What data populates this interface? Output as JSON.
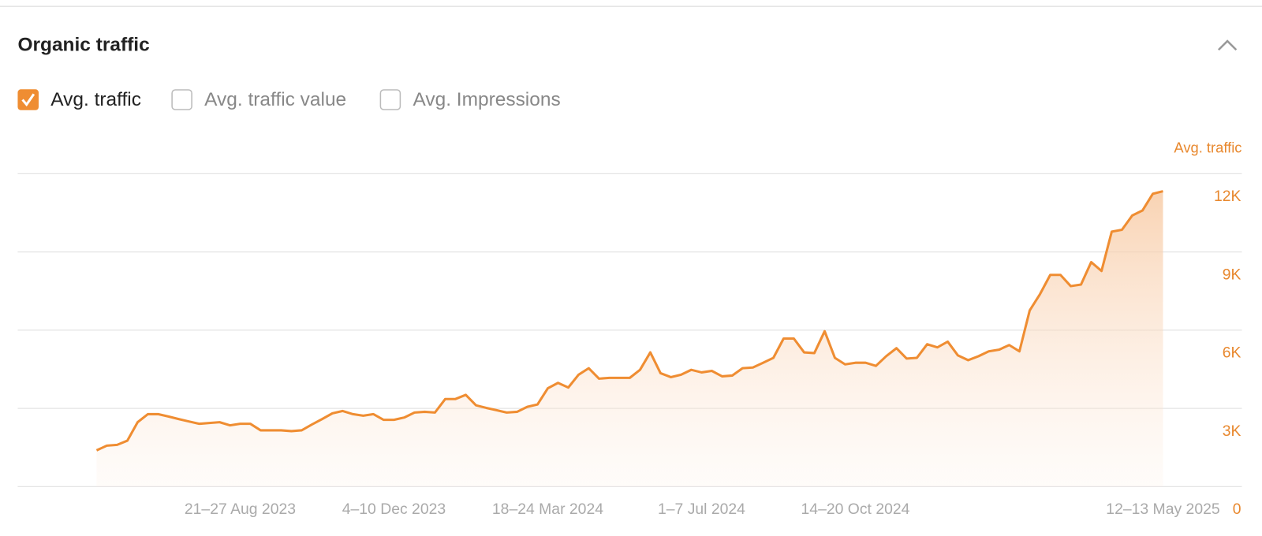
{
  "header": {
    "title": "Organic traffic"
  },
  "toggles": [
    {
      "label": "Avg. traffic",
      "checked": true
    },
    {
      "label": "Avg. traffic value",
      "checked": false
    },
    {
      "label": "Avg. Impressions",
      "checked": false
    }
  ],
  "chart_data": {
    "type": "area",
    "y_axis_label": "Avg. traffic",
    "color": "#ef8d32",
    "grid": true,
    "categories": [
      null,
      null,
      null,
      null,
      null,
      null,
      null,
      null,
      null,
      null,
      null,
      null,
      null,
      null,
      "21–27 Aug 2023",
      null,
      null,
      null,
      null,
      null,
      null,
      null,
      null,
      null,
      null,
      null,
      null,
      null,
      null,
      "4–10 Dec 2023",
      null,
      null,
      null,
      null,
      null,
      null,
      null,
      null,
      null,
      null,
      null,
      null,
      null,
      null,
      "18–24 Mar 2024",
      null,
      null,
      null,
      null,
      null,
      null,
      null,
      null,
      null,
      null,
      null,
      null,
      null,
      null,
      "1–7 Jul 2024",
      null,
      null,
      null,
      null,
      null,
      null,
      null,
      null,
      null,
      null,
      null,
      null,
      null,
      null,
      "14–20 Oct 2024",
      null,
      null,
      null,
      null,
      null,
      null,
      null,
      null,
      null,
      null,
      null,
      null,
      null,
      null,
      null,
      null,
      null,
      null,
      null,
      null,
      null,
      null,
      null,
      null,
      null,
      null,
      null,
      null,
      null,
      "12–13 May 2025"
    ],
    "values": [
      1390,
      1570,
      1600,
      1760,
      2470,
      2780,
      2780,
      2690,
      2590,
      2500,
      2410,
      2440,
      2470,
      2350,
      2410,
      2410,
      2160,
      2160,
      2160,
      2130,
      2160,
      2380,
      2590,
      2810,
      2900,
      2780,
      2720,
      2780,
      2560,
      2560,
      2650,
      2840,
      2870,
      2840,
      3360,
      3360,
      3520,
      3120,
      3020,
      2930,
      2840,
      2870,
      3060,
      3150,
      3770,
      3980,
      3800,
      4290,
      4540,
      4140,
      4170,
      4170,
      4170,
      4480,
      5150,
      4350,
      4200,
      4290,
      4480,
      4380,
      4440,
      4230,
      4260,
      4540,
      4570,
      4750,
      4940,
      5680,
      5680,
      5150,
      5120,
      5960,
      4940,
      4690,
      4750,
      4750,
      4630,
      5000,
      5310,
      4910,
      4940,
      5460,
      5340,
      5560,
      5030,
      4850,
      5000,
      5190,
      5250,
      5430,
      5190,
      6760,
      7380,
      8120,
      8120,
      7690,
      7750,
      8610,
      8270,
      9780,
      9850,
      10400,
      10590,
      11230,
      11330
    ],
    "ylim": [
      0,
      12000
    ],
    "yticks": [
      0,
      {
        "value": 3000,
        "label": "3K"
      },
      {
        "value": 6000,
        "label": "6K"
      },
      {
        "value": 9000,
        "label": "9K"
      },
      {
        "value": 12000,
        "label": "12K"
      }
    ]
  }
}
